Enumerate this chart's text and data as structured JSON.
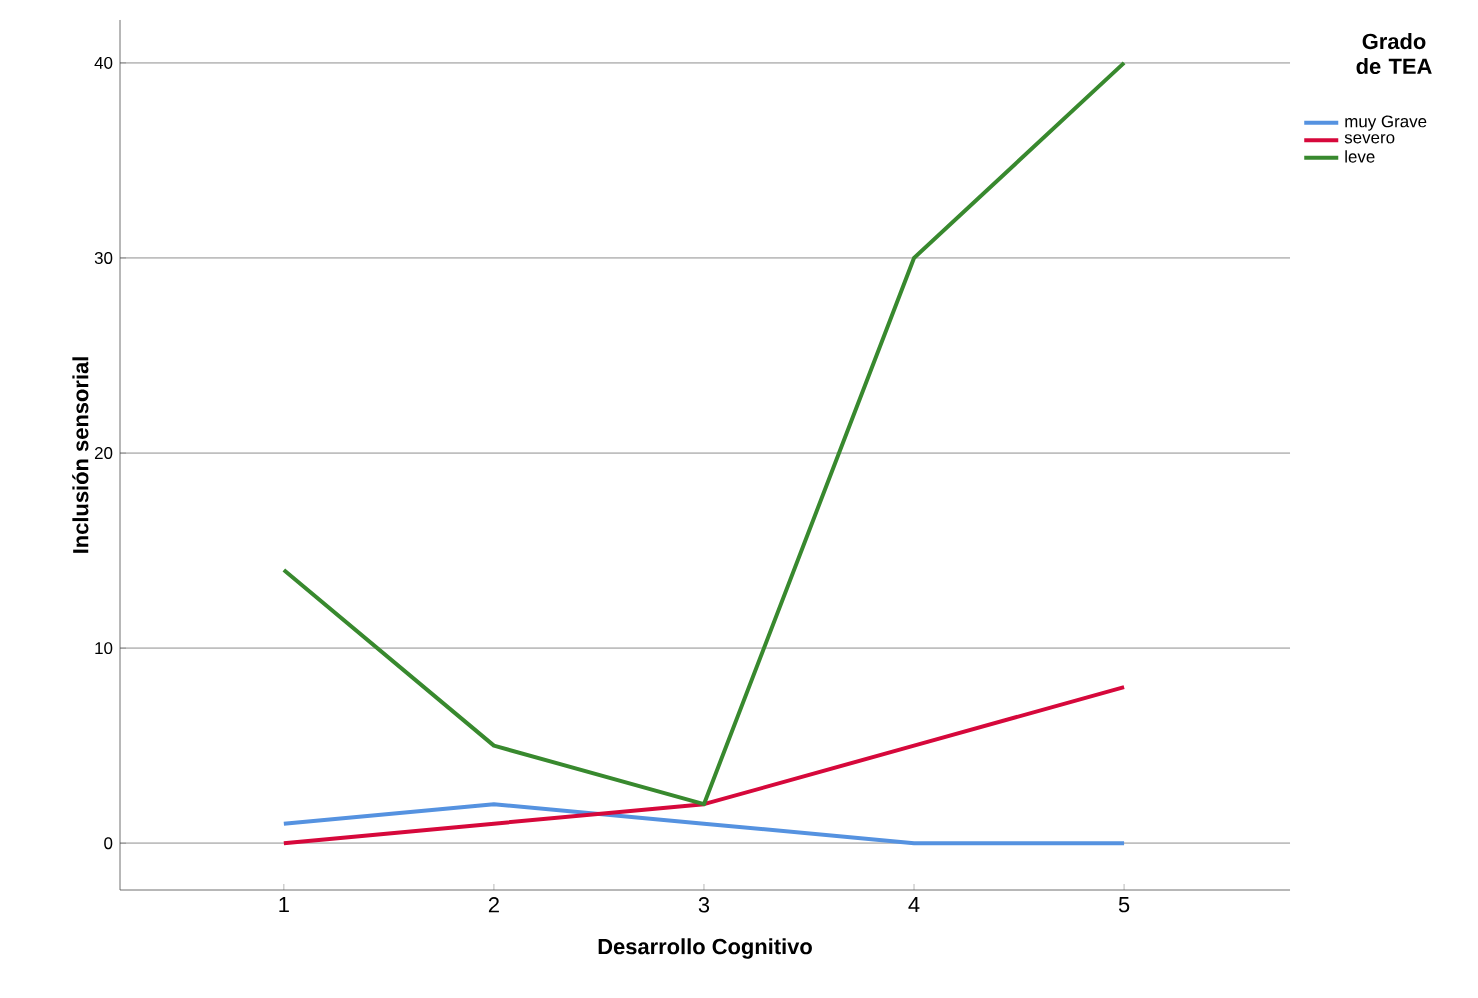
{
  "chart_data": {
    "type": "line",
    "xlabel": "Desarrollo Cognitivo",
    "ylabel": "Inclusión sensorial",
    "legend_title": "Grado de TEA",
    "categories": [
      "1",
      "2",
      "3",
      "4",
      "5"
    ],
    "series": [
      {
        "name": "muy Grave",
        "color": "#5592e0",
        "values": [
          1,
          2,
          1,
          0,
          0
        ]
      },
      {
        "name": "severo",
        "color": "#d6083b",
        "values": [
          0,
          1,
          2,
          5,
          8
        ]
      },
      {
        "name": "leve",
        "color": "#38892e",
        "values": [
          14,
          5,
          2,
          30,
          40
        ]
      }
    ],
    "ylim": [
      -2.4,
      42.2
    ],
    "yticks": [
      0,
      10,
      20,
      30,
      40
    ],
    "grid": "y",
    "legend": "top right",
    "marker": "none",
    "line_style": "solid"
  }
}
